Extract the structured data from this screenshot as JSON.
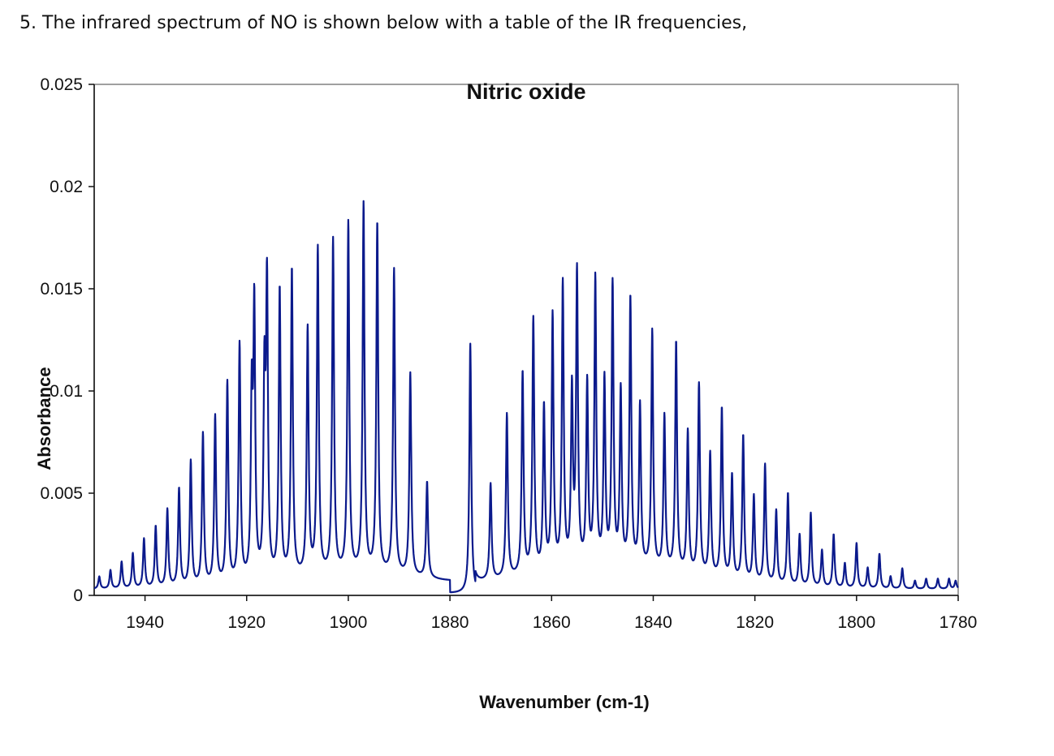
{
  "question_text": "5. The infrared spectrum of NO is shown below with a table of the IR frequencies,",
  "chart_data": {
    "type": "line",
    "title": "Nitric oxide",
    "xlabel": "Wavenumber (cm-1)",
    "ylabel": "Absorbance",
    "xlim": [
      1950,
      1780
    ],
    "ylim": [
      0,
      0.025
    ],
    "x_reversed": true,
    "x_ticks": [
      1940,
      1920,
      1900,
      1880,
      1860,
      1840,
      1820,
      1800,
      1780
    ],
    "y_ticks": [
      0,
      0.005,
      0.01,
      0.015,
      0.02,
      0.025
    ],
    "x_tick_labels": [
      "1940",
      "1920",
      "1900",
      "1880",
      "1860",
      "1840",
      "1820",
      "1800",
      "1780"
    ],
    "y_tick_labels": [
      "0",
      "0.005",
      "0.01",
      "0.015",
      "0.02",
      "0.025"
    ],
    "grid": false,
    "line_color": "#0b1a8c",
    "series": [
      {
        "name": "",
        "peaks": [
          {
            "x": 1949.0,
            "y": 0.0006
          },
          {
            "x": 1946.8,
            "y": 0.0009
          },
          {
            "x": 1944.6,
            "y": 0.0013
          },
          {
            "x": 1942.4,
            "y": 0.0017
          },
          {
            "x": 1940.2,
            "y": 0.0024
          },
          {
            "x": 1937.9,
            "y": 0.003
          },
          {
            "x": 1935.6,
            "y": 0.0038
          },
          {
            "x": 1933.3,
            "y": 0.0048
          },
          {
            "x": 1931.0,
            "y": 0.0061
          },
          {
            "x": 1928.6,
            "y": 0.0074
          },
          {
            "x": 1926.2,
            "y": 0.0082
          },
          {
            "x": 1923.8,
            "y": 0.0098
          },
          {
            "x": 1921.4,
            "y": 0.0116
          },
          {
            "x": 1919.0,
            "y": 0.0085
          },
          {
            "x": 1918.5,
            "y": 0.0129
          },
          {
            "x": 1916.5,
            "y": 0.0093
          },
          {
            "x": 1916.0,
            "y": 0.014
          },
          {
            "x": 1913.5,
            "y": 0.0141
          },
          {
            "x": 1911.1,
            "y": 0.015
          },
          {
            "x": 1908.0,
            "y": 0.012
          },
          {
            "x": 1906.0,
            "y": 0.0159
          },
          {
            "x": 1903.0,
            "y": 0.0163
          },
          {
            "x": 1900.0,
            "y": 0.0171
          },
          {
            "x": 1897.0,
            "y": 0.018
          },
          {
            "x": 1894.3,
            "y": 0.0171
          },
          {
            "x": 1891.0,
            "y": 0.0149
          },
          {
            "x": 1887.8,
            "y": 0.0099
          },
          {
            "x": 1884.5,
            "y": 0.0047
          },
          {
            "x": 1876.0,
            "y": 0.0122
          },
          {
            "x": 1872.0,
            "y": 0.0047
          },
          {
            "x": 1868.8,
            "y": 0.008
          },
          {
            "x": 1865.7,
            "y": 0.0099
          },
          {
            "x": 1863.6,
            "y": 0.0124
          },
          {
            "x": 1861.5,
            "y": 0.008
          },
          {
            "x": 1859.8,
            "y": 0.0124
          },
          {
            "x": 1857.8,
            "y": 0.0139
          },
          {
            "x": 1856.0,
            "y": 0.0085
          },
          {
            "x": 1855.0,
            "y": 0.0143
          },
          {
            "x": 1853.0,
            "y": 0.0089
          },
          {
            "x": 1851.4,
            "y": 0.014
          },
          {
            "x": 1849.6,
            "y": 0.009
          },
          {
            "x": 1848.0,
            "y": 0.0137
          },
          {
            "x": 1846.4,
            "y": 0.0085
          },
          {
            "x": 1844.5,
            "y": 0.0131
          },
          {
            "x": 1842.6,
            "y": 0.0079
          },
          {
            "x": 1840.2,
            "y": 0.0116
          },
          {
            "x": 1837.8,
            "y": 0.0075
          },
          {
            "x": 1835.5,
            "y": 0.0112
          },
          {
            "x": 1833.2,
            "y": 0.0069
          },
          {
            "x": 1831.0,
            "y": 0.0093
          },
          {
            "x": 1828.8,
            "y": 0.006
          },
          {
            "x": 1826.5,
            "y": 0.0083
          },
          {
            "x": 1824.5,
            "y": 0.0051
          },
          {
            "x": 1822.3,
            "y": 0.0071
          },
          {
            "x": 1820.2,
            "y": 0.0042
          },
          {
            "x": 1818.0,
            "y": 0.0058
          },
          {
            "x": 1815.8,
            "y": 0.0036
          },
          {
            "x": 1813.5,
            "y": 0.0045
          },
          {
            "x": 1811.2,
            "y": 0.0025
          },
          {
            "x": 1809.0,
            "y": 0.0036
          },
          {
            "x": 1806.8,
            "y": 0.0018
          },
          {
            "x": 1804.5,
            "y": 0.0026
          },
          {
            "x": 1802.3,
            "y": 0.0012
          },
          {
            "x": 1800.0,
            "y": 0.0022
          },
          {
            "x": 1797.8,
            "y": 0.001
          },
          {
            "x": 1795.5,
            "y": 0.0017
          },
          {
            "x": 1793.3,
            "y": 0.0006
          },
          {
            "x": 1791.0,
            "y": 0.001
          },
          {
            "x": 1788.5,
            "y": 0.0004
          },
          {
            "x": 1786.3,
            "y": 0.0005
          },
          {
            "x": 1784.0,
            "y": 0.0005
          },
          {
            "x": 1781.8,
            "y": 0.0005
          },
          {
            "x": 1780.5,
            "y": 0.0004
          }
        ]
      }
    ]
  }
}
